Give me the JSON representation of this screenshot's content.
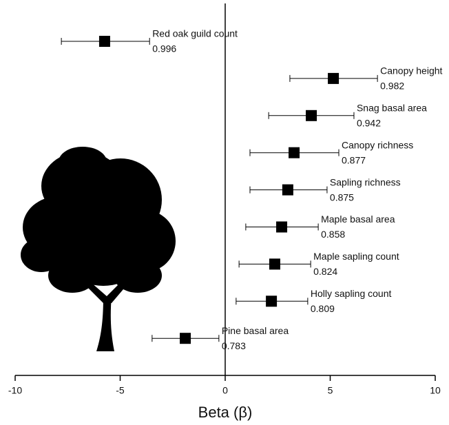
{
  "chart_data": {
    "type": "forest",
    "xlabel": "Beta (β)",
    "categories": [
      "Red oak guild count",
      "Canopy height",
      "Snag basal area",
      "Canopy richness",
      "Sapling richness",
      "Maple basal area",
      "Maple sapling count",
      "Holly sapling count",
      "Pine basal area"
    ],
    "values": [
      -5.74,
      5.15,
      4.1,
      3.28,
      2.98,
      2.69,
      2.36,
      2.2,
      -1.9
    ],
    "lower": [
      -7.8,
      3.08,
      2.07,
      1.18,
      1.18,
      0.98,
      0.66,
      0.52,
      -3.48
    ],
    "upper": [
      -3.6,
      7.25,
      6.13,
      5.41,
      4.85,
      4.43,
      4.07,
      3.93,
      -0.3
    ],
    "scores": [
      0.996,
      0.982,
      0.942,
      0.877,
      0.875,
      0.858,
      0.824,
      0.809,
      0.783
    ],
    "color": "#000000",
    "xlim": [
      -10,
      10
    ],
    "xticks": [
      -10,
      -5,
      0,
      5,
      10
    ]
  }
}
